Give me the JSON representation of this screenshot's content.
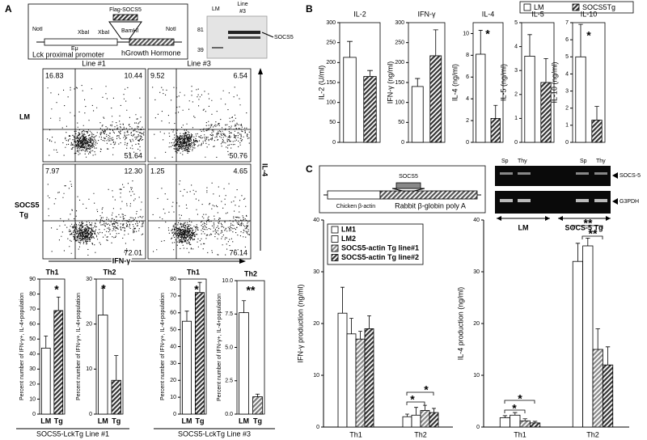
{
  "chart_data": [
    {
      "type": "bar",
      "title": "Th1",
      "ylabel": "Percent number of IFN-γ+, IL-4+population",
      "categories": [
        "LM",
        "Tg"
      ],
      "values": [
        44,
        69
      ],
      "errors": [
        8,
        9
      ],
      "colors": [
        "#ffffff",
        "#333333"
      ],
      "hatch": [
        false,
        true
      ],
      "ylim": [
        0,
        90
      ],
      "yticks": [
        0,
        10,
        20,
        30,
        40,
        50,
        60,
        70,
        80,
        90
      ],
      "annotations": [
        "*"
      ]
    },
    {
      "type": "bar",
      "title": "Th2",
      "ylabel": "Percent number of IFN-γ+, IL-4+population",
      "categories": [
        "LM",
        "Tg"
      ],
      "values": [
        22,
        7.5
      ],
      "errors": [
        6,
        5.5
      ],
      "colors": [
        "#ffffff",
        "#333333"
      ],
      "hatch": [
        false,
        true
      ],
      "ylim": [
        0,
        30
      ],
      "yticks": [
        0,
        10,
        20,
        30
      ],
      "annotations": [
        "*"
      ]
    },
    {
      "type": "bar",
      "title": "Th1",
      "ylabel": "Percent number of IFN-γ+, IL-4+population",
      "categories": [
        "LM",
        "Tg"
      ],
      "values": [
        55,
        72
      ],
      "errors": [
        6,
        6
      ],
      "colors": [
        "#ffffff",
        "#333333"
      ],
      "hatch": [
        false,
        true
      ],
      "ylim": [
        0,
        80
      ],
      "yticks": [
        0,
        10,
        20,
        30,
        40,
        50,
        60,
        70,
        80
      ],
      "annotations": [
        "*"
      ]
    },
    {
      "type": "bar",
      "title": "Th2",
      "ylabel": "Percent number of IFN-γ+, IL-4+population",
      "categories": [
        "LM",
        "Tg"
      ],
      "values": [
        7.6,
        1.3
      ],
      "errors": [
        0.9,
        0.2
      ],
      "colors": [
        "#ffffff",
        "#777777"
      ],
      "hatch": [
        false,
        true
      ],
      "ylim": [
        0,
        10
      ],
      "yticks": [
        {
          "value": 0,
          "label": "0.0"
        },
        2.5,
        {
          "value": 5,
          "label": "5.0"
        },
        7.5,
        {
          "value": 10,
          "label": "10.0"
        }
      ],
      "annotations": [
        "**"
      ]
    },
    {
      "type": "bar",
      "title": "IL-2",
      "ylabel": "IL-2 (U/ml)",
      "values": [
        213,
        165
      ],
      "errors": [
        40,
        15
      ],
      "ylim": [
        0,
        300
      ],
      "yticks": [
        0,
        50,
        100,
        150,
        200,
        250,
        300
      ],
      "annotations": []
    },
    {
      "type": "bar",
      "title": "IFN-γ",
      "ylabel": "IFN-γ (ng/ml)",
      "values": [
        140,
        217
      ],
      "errors": [
        20,
        65
      ],
      "ylim": [
        0,
        300
      ],
      "yticks": [
        0,
        50,
        100,
        150,
        200,
        250,
        300
      ],
      "annotations": []
    },
    {
      "type": "bar",
      "title": "IL-4",
      "ylabel": "IL-4 (ng/ml)",
      "values": [
        8.1,
        2.2
      ],
      "errors": [
        2.2,
        1.2
      ],
      "ylim": [
        0,
        11
      ],
      "yticks": [
        0,
        2,
        4,
        6,
        8,
        10
      ],
      "annotations": [
        "*"
      ]
    },
    {
      "type": "bar",
      "title": "IL-5",
      "ylabel": "IL-5 (ng/ml)",
      "values": [
        3.6,
        2.5
      ],
      "errors": [
        0.9,
        1.0
      ],
      "ylim": [
        0,
        5
      ],
      "yticks": [
        0,
        1,
        2,
        3,
        4,
        5
      ],
      "annotations": []
    },
    {
      "type": "bar",
      "title": "IL-10",
      "ylabel": "IL-10 (ng/ml)",
      "values": [
        5,
        1.3
      ],
      "errors": [
        1.9,
        0.8
      ],
      "ylim": [
        0,
        7
      ],
      "yticks": [
        0,
        1,
        2,
        3,
        4,
        5,
        6,
        7
      ],
      "annotations": [
        "*"
      ]
    },
    {
      "type": "bar",
      "ylabel": "IFN-γ production (ng/ml)",
      "categories": [
        "Th1",
        "Th2"
      ],
      "series": [
        {
          "name": "LM1",
          "color": "#ffffff",
          "hatch": false,
          "values": [
            22,
            2
          ],
          "errors": [
            5,
            0.5
          ]
        },
        {
          "name": "LM2",
          "color": "#ffffff",
          "hatch": false,
          "values": [
            18,
            2.3
          ],
          "errors": [
            3,
            1.5
          ]
        },
        {
          "name": "SOCS5-actin Tg line#1",
          "color": "#888888",
          "hatch": true,
          "values": [
            17,
            3.2
          ],
          "errors": [
            1.5,
            1
          ]
        },
        {
          "name": "SOCS5-actin Tg line#2",
          "color": "#333333",
          "hatch": true,
          "values": [
            19,
            2.8
          ],
          "errors": [
            2.5,
            0.8
          ]
        }
      ],
      "ylim": [
        0,
        40
      ],
      "yticks": [
        0,
        10,
        20,
        30,
        40
      ],
      "legend": true,
      "annotations": [
        "*",
        "*"
      ]
    },
    {
      "type": "bar",
      "ylabel": "IL-4 production (ng/ml)",
      "categories": [
        "Th1",
        "Th2"
      ],
      "series": [
        {
          "color": "#ffffff",
          "hatch": false,
          "values": [
            1.8,
            32
          ],
          "errors": [
            0.4,
            3.5
          ]
        },
        {
          "color": "#ffffff",
          "hatch": false,
          "values": [
            2.3,
            35
          ],
          "errors": [
            0.5,
            1.5
          ]
        },
        {
          "color": "#888888",
          "hatch": true,
          "values": [
            1.2,
            15
          ],
          "errors": [
            0.4,
            4
          ]
        },
        {
          "color": "#333333",
          "hatch": true,
          "values": [
            0.8,
            12
          ],
          "errors": [
            0.3,
            3.5
          ]
        }
      ],
      "ylim": [
        0,
        40
      ],
      "yticks": [
        0,
        10,
        20,
        30,
        40
      ],
      "legend": false,
      "annotations": [
        "*",
        "*",
        "**",
        "**"
      ]
    }
  ],
  "figure": {
    "panels": [
      "A",
      "B",
      "C"
    ],
    "a_construct": {
      "sites": [
        "NotI",
        "XbaI",
        "XbaI",
        "BamHI",
        "NotI"
      ],
      "insert": "Flag-SOCS5",
      "enhancer": "Eμ",
      "promoter": "Lck proximal promoter",
      "tail": "hGrowth Hormone"
    },
    "a_blot": {
      "lane": "LM",
      "line": [
        "Line",
        "#3"
      ],
      "markers": [
        "81",
        "39"
      ],
      "band": "SOCS5"
    },
    "a_flow": {
      "columns": [
        "Line #1",
        "Line #3"
      ],
      "rows": [
        [
          "LM"
        ],
        [
          "SOCS5",
          "Tg"
        ]
      ],
      "y_axis": "IL-4",
      "x_axis": "IFN-γ",
      "quadrants": [
        [
          "16.83",
          "10.44",
          "51.64"
        ],
        [
          "9.52",
          "6.54",
          "50.76"
        ],
        [
          "7.97",
          "12.30",
          "72.01"
        ],
        [
          "1.25",
          "4.65",
          "76.14"
        ]
      ]
    },
    "a_groups": [
      "SOCS5-LckTg Line #1",
      "SOCS5-LckTg Line #3"
    ],
    "b_legend": [
      {
        "name": "LM",
        "color": "#ffffff",
        "hatch": false
      },
      {
        "name": "SOCS5Tg",
        "color": "#333333",
        "hatch": true
      }
    ],
    "c_construct": {
      "insert": "SOCS5",
      "promoter": "Chicken β-actin",
      "tail": "Rabbit β-globin poly A"
    },
    "c_gel": {
      "lanes": [
        "Sp",
        "Thy",
        "Sp",
        "Thy"
      ],
      "bands": [
        "SOCS-5",
        "G3PDH"
      ],
      "groups": [
        "LM",
        "SOCS-5 Tg"
      ]
    }
  }
}
